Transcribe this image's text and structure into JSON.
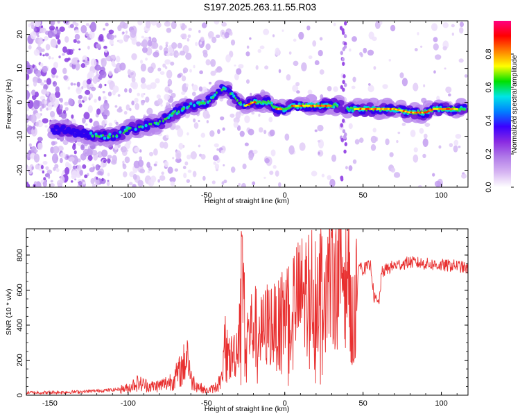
{
  "title": "S197.2025.263.11.55.R03",
  "chart_data": [
    {
      "type": "heatmap",
      "name": "spectrogram",
      "xlabel": "Height of straight line (km)",
      "ylabel": "Frequency (Hz)",
      "xlim": [
        -165,
        117
      ],
      "ylim": [
        -25,
        24
      ],
      "xticks": [
        -150,
        -100,
        -50,
        0,
        50,
        100
      ],
      "yticks": [
        -20,
        -10,
        0,
        10,
        20
      ],
      "ridge": {
        "x": [
          -145,
          -130,
          -120,
          -110,
          -100,
          -90,
          -80,
          -70,
          -60,
          -50,
          -45,
          -40,
          -35,
          -30,
          -25,
          -20,
          -15,
          -10,
          -5,
          0,
          5,
          10,
          20,
          30,
          35,
          40,
          50,
          60,
          70,
          80,
          90,
          95,
          100,
          110,
          115
        ],
        "y": [
          -8,
          -9,
          -10,
          -10,
          -8,
          -7,
          -6,
          -3,
          -1,
          0,
          2,
          4,
          3,
          0,
          -1,
          0,
          0,
          0,
          -2,
          -2,
          -1,
          -1,
          -1,
          -1,
          -1,
          -2,
          -2,
          -2,
          -2,
          -3,
          -3,
          -2,
          -2,
          -2,
          -2
        ]
      },
      "colorbar": {
        "label": "Normalized spectral amplitude",
        "ticks": [
          0.0,
          0.2,
          0.4,
          0.6,
          0.8
        ],
        "tick_labels": [
          "0.0",
          "0.2",
          "0.4",
          "0.6",
          "0.8"
        ],
        "range": [
          0,
          1
        ],
        "colors": [
          "#ffffff",
          "#d6b4f2",
          "#b07ae8",
          "#8a2be2",
          "#3a00ff",
          "#0080ff",
          "#00e5e5",
          "#00e000",
          "#ffff00",
          "#ff8000",
          "#ff0000",
          "#ff0080"
        ]
      }
    },
    {
      "type": "line",
      "name": "snr",
      "xlabel": "Height of straight line (km)",
      "ylabel": "SNR (10 * v/v)",
      "xlim": [
        -165,
        117
      ],
      "ylim": [
        0,
        950
      ],
      "xticks": [
        -150,
        -100,
        -50,
        0,
        50,
        100
      ],
      "yticks": [
        0,
        200,
        400,
        600,
        800
      ],
      "color": "#e83030",
      "series": {
        "x": [
          -165,
          -150,
          -130,
          -120,
          -110,
          -100,
          -95,
          -90,
          -85,
          -80,
          -75,
          -70,
          -65,
          -62,
          -60,
          -55,
          -50,
          -45,
          -40,
          -38,
          -35,
          -30,
          -27,
          -25,
          -20,
          -15,
          -10,
          -5,
          0,
          5,
          10,
          15,
          20,
          25,
          30,
          35,
          40,
          42,
          45,
          47,
          50,
          55,
          57,
          60,
          62,
          65,
          70,
          80,
          90,
          100,
          110,
          117
        ],
        "y": [
          15,
          15,
          20,
          25,
          30,
          40,
          70,
          60,
          50,
          55,
          70,
          100,
          160,
          250,
          90,
          50,
          25,
          40,
          90,
          300,
          200,
          280,
          650,
          320,
          400,
          350,
          420,
          380,
          480,
          520,
          560,
          600,
          620,
          660,
          700,
          720,
          740,
          180,
          200,
          750,
          720,
          740,
          560,
          520,
          700,
          720,
          740,
          760,
          750,
          740,
          740,
          720
        ]
      }
    }
  ]
}
